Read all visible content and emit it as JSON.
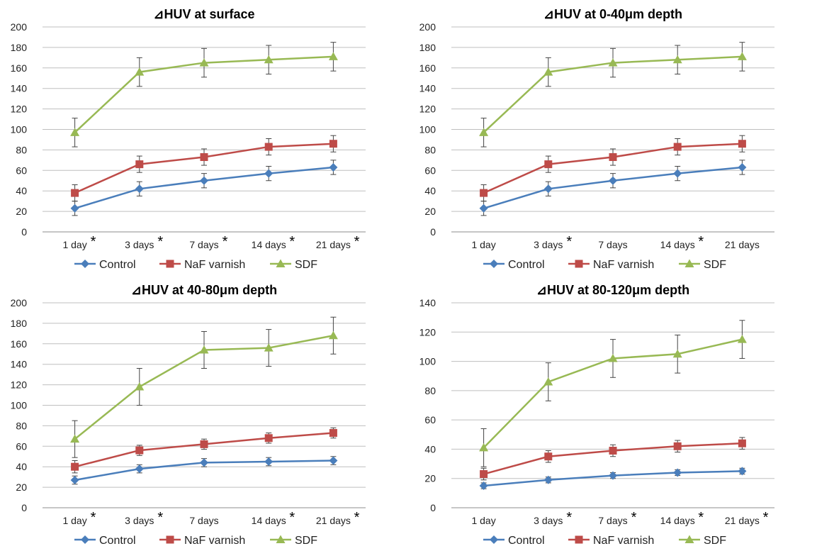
{
  "chart_data": [
    {
      "type": "line",
      "title": "⊿HUV at surface",
      "categories": [
        "1 day",
        "3 days",
        "7 days",
        "14 days",
        "21 days"
      ],
      "asterisks": [
        true,
        true,
        true,
        true,
        true
      ],
      "ylim": [
        0,
        200
      ],
      "yticks": [
        0,
        20,
        40,
        60,
        80,
        100,
        120,
        140,
        160,
        180,
        200
      ],
      "grid": true,
      "legend": "bottom",
      "series": [
        {
          "name": "Control",
          "color": "#4a7ebb",
          "marker": "diamond",
          "values": [
            23,
            42,
            50,
            57,
            63
          ],
          "errors": [
            7,
            7,
            7,
            7,
            7
          ]
        },
        {
          "name": "NaF varnish",
          "color": "#be4b48",
          "marker": "square",
          "values": [
            38,
            66,
            73,
            83,
            86
          ],
          "errors": [
            8,
            8,
            8,
            8,
            8
          ]
        },
        {
          "name": "SDF",
          "color": "#98b954",
          "marker": "triangle",
          "values": [
            97,
            156,
            165,
            168,
            171
          ],
          "errors": [
            14,
            14,
            14,
            14,
            14
          ]
        }
      ]
    },
    {
      "type": "line",
      "title": "⊿HUV at 0-40μm depth",
      "categories": [
        "1 day",
        "3 days",
        "7 days",
        "14 days",
        "21 days"
      ],
      "asterisks": [
        false,
        true,
        false,
        true,
        false
      ],
      "ylim": [
        0,
        200
      ],
      "yticks": [
        0,
        20,
        40,
        60,
        80,
        100,
        120,
        140,
        160,
        180,
        200
      ],
      "grid": true,
      "legend": "bottom",
      "series": [
        {
          "name": "Control",
          "color": "#4a7ebb",
          "marker": "diamond",
          "values": [
            23,
            42,
            50,
            57,
            63
          ],
          "errors": [
            7,
            7,
            7,
            7,
            7
          ]
        },
        {
          "name": "NaF varnish",
          "color": "#be4b48",
          "marker": "square",
          "values": [
            38,
            66,
            73,
            83,
            86
          ],
          "errors": [
            8,
            8,
            8,
            8,
            8
          ]
        },
        {
          "name": "SDF",
          "color": "#98b954",
          "marker": "triangle",
          "values": [
            97,
            156,
            165,
            168,
            171
          ],
          "errors": [
            14,
            14,
            14,
            14,
            14
          ]
        }
      ]
    },
    {
      "type": "line",
      "title": "⊿HUV at 40-80μm depth",
      "categories": [
        "1 day",
        "3 days",
        "7 days",
        "14 days",
        "21 days"
      ],
      "asterisks": [
        true,
        true,
        false,
        true,
        true
      ],
      "ylim": [
        0,
        200
      ],
      "yticks": [
        0,
        20,
        40,
        60,
        80,
        100,
        120,
        140,
        160,
        180,
        200
      ],
      "grid": true,
      "legend": "bottom",
      "series": [
        {
          "name": "Control",
          "color": "#4a7ebb",
          "marker": "diamond",
          "values": [
            27,
            38,
            44,
            45,
            46
          ],
          "errors": [
            4,
            4,
            4,
            4,
            4
          ]
        },
        {
          "name": "NaF varnish",
          "color": "#be4b48",
          "marker": "square",
          "values": [
            40,
            56,
            62,
            68,
            73
          ],
          "errors": [
            6,
            5,
            5,
            5,
            5
          ]
        },
        {
          "name": "SDF",
          "color": "#98b954",
          "marker": "triangle",
          "values": [
            67,
            118,
            154,
            156,
            168
          ],
          "errors": [
            18,
            18,
            18,
            18,
            18
          ]
        }
      ]
    },
    {
      "type": "line",
      "title": "⊿HUV at 80-120μm depth",
      "categories": [
        "1 day",
        "3 days",
        "7 days",
        "14 days",
        "21 days"
      ],
      "asterisks": [
        false,
        true,
        true,
        true,
        true
      ],
      "ylim": [
        0,
        140
      ],
      "yticks": [
        0,
        20,
        40,
        60,
        80,
        100,
        120,
        140
      ],
      "grid": true,
      "legend": "bottom",
      "series": [
        {
          "name": "Control",
          "color": "#4a7ebb",
          "marker": "diamond",
          "values": [
            15,
            19,
            22,
            24,
            25
          ],
          "errors": [
            2,
            2,
            2,
            2,
            2
          ]
        },
        {
          "name": "NaF varnish",
          "color": "#be4b48",
          "marker": "square",
          "values": [
            23,
            35,
            39,
            42,
            44
          ],
          "errors": [
            4,
            4,
            4,
            4,
            4
          ]
        },
        {
          "name": "SDF",
          "color": "#98b954",
          "marker": "triangle",
          "values": [
            41,
            86,
            102,
            105,
            115
          ],
          "errors": [
            13,
            13,
            13,
            13,
            13
          ]
        }
      ]
    }
  ]
}
